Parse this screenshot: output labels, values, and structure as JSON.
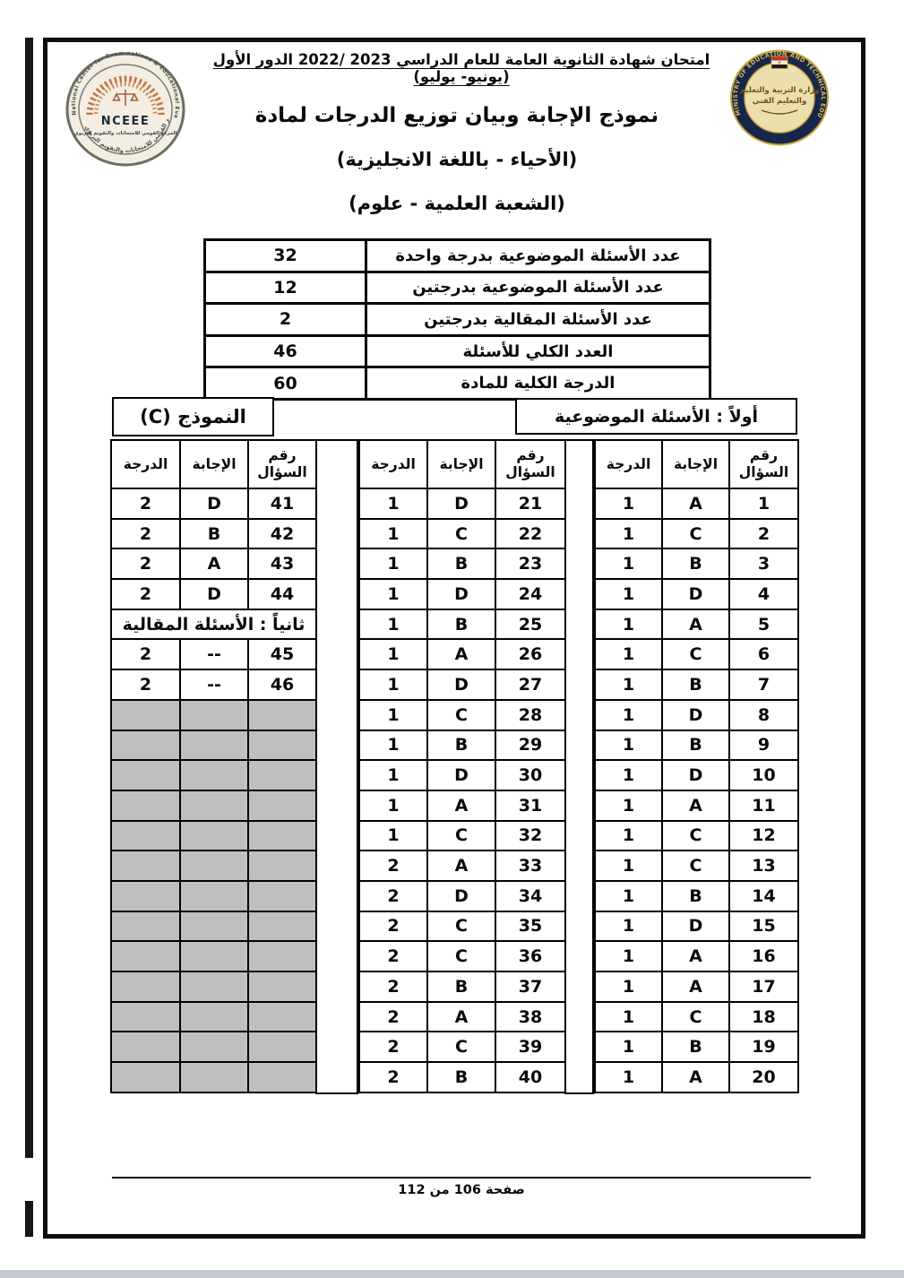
{
  "page": {
    "exam_header": "امتحان شهادة الثانوية العامة للعام الدراسي ‪2022/ 2023‬ الدور الأول (يونيو- يوليو)",
    "title_line1": "نموذج الإجابة وبيان توزيع الدرجات لمادة",
    "title_line2": "(الأحياء - باللغة الانجليزية)",
    "title_line3": "(الشعبة العلمية - علوم)",
    "footer_page": "صفحة 106 من 112"
  },
  "logos": {
    "nceee": {
      "acronym": "NCEEE",
      "ring_text_en": "National Center for Examinations & Educational Evaluation",
      "ring_text_ar": "المركز القومي للامتحانات والتقويم التربوي"
    },
    "ministry": {
      "ring_text": "MINISTRY OF EDUCATION AND TECHNICAL EDUCATION",
      "center_line1": "وزارة التربية والتعليم",
      "center_line2": "والتعليم الفني"
    }
  },
  "summary": {
    "rows": [
      {
        "label": "عدد الأسئلة الموضوعية بدرجة واحدة",
        "value": "32"
      },
      {
        "label": "عدد الأسئلة الموضوعية بدرجتين",
        "value": "12"
      },
      {
        "label": "عدد الأسئلة المقالية بدرجتين",
        "value": "2"
      },
      {
        "label": "العدد الكلي للأسئلة",
        "value": "46"
      },
      {
        "label": "الدرجة الكلية للمادة",
        "value": "60"
      }
    ]
  },
  "sections": {
    "objective_title": "أولاً : الأسئلة الموضوعية",
    "model_label": "النموذج (C)",
    "essay_title": "ثانياً : الأسئلة المقالية"
  },
  "answer_table": {
    "headers": {
      "q": "رقم السؤال",
      "a": "الإجابة",
      "g": "الدرجة"
    },
    "right": [
      {
        "q": "1",
        "a": "A",
        "g": "1"
      },
      {
        "q": "2",
        "a": "C",
        "g": "1"
      },
      {
        "q": "3",
        "a": "B",
        "g": "1"
      },
      {
        "q": "4",
        "a": "D",
        "g": "1"
      },
      {
        "q": "5",
        "a": "A",
        "g": "1"
      },
      {
        "q": "6",
        "a": "C",
        "g": "1"
      },
      {
        "q": "7",
        "a": "B",
        "g": "1"
      },
      {
        "q": "8",
        "a": "D",
        "g": "1"
      },
      {
        "q": "9",
        "a": "B",
        "g": "1"
      },
      {
        "q": "10",
        "a": "D",
        "g": "1"
      },
      {
        "q": "11",
        "a": "A",
        "g": "1"
      },
      {
        "q": "12",
        "a": "C",
        "g": "1"
      },
      {
        "q": "13",
        "a": "C",
        "g": "1"
      },
      {
        "q": "14",
        "a": "B",
        "g": "1"
      },
      {
        "q": "15",
        "a": "D",
        "g": "1"
      },
      {
        "q": "16",
        "a": "A",
        "g": "1"
      },
      {
        "q": "17",
        "a": "A",
        "g": "1"
      },
      {
        "q": "18",
        "a": "C",
        "g": "1"
      },
      {
        "q": "19",
        "a": "B",
        "g": "1"
      },
      {
        "q": "20",
        "a": "A",
        "g": "1"
      }
    ],
    "middle": [
      {
        "q": "21",
        "a": "D",
        "g": "1"
      },
      {
        "q": "22",
        "a": "C",
        "g": "1"
      },
      {
        "q": "23",
        "a": "B",
        "g": "1"
      },
      {
        "q": "24",
        "a": "D",
        "g": "1"
      },
      {
        "q": "25",
        "a": "B",
        "g": "1"
      },
      {
        "q": "26",
        "a": "A",
        "g": "1"
      },
      {
        "q": "27",
        "a": "D",
        "g": "1"
      },
      {
        "q": "28",
        "a": "C",
        "g": "1"
      },
      {
        "q": "29",
        "a": "B",
        "g": "1"
      },
      {
        "q": "30",
        "a": "D",
        "g": "1"
      },
      {
        "q": "31",
        "a": "A",
        "g": "1"
      },
      {
        "q": "32",
        "a": "C",
        "g": "1"
      },
      {
        "q": "33",
        "a": "A",
        "g": "2"
      },
      {
        "q": "34",
        "a": "D",
        "g": "2"
      },
      {
        "q": "35",
        "a": "C",
        "g": "2"
      },
      {
        "q": "36",
        "a": "C",
        "g": "2"
      },
      {
        "q": "37",
        "a": "B",
        "g": "2"
      },
      {
        "q": "38",
        "a": "A",
        "g": "2"
      },
      {
        "q": "39",
        "a": "C",
        "g": "2"
      },
      {
        "q": "40",
        "a": "B",
        "g": "2"
      }
    ],
    "left_top": [
      {
        "q": "41",
        "a": "D",
        "g": "2"
      },
      {
        "q": "42",
        "a": "B",
        "g": "2"
      },
      {
        "q": "43",
        "a": "A",
        "g": "2"
      },
      {
        "q": "44",
        "a": "D",
        "g": "2"
      }
    ],
    "left_bottom": [
      {
        "q": "45",
        "a": "--",
        "g": "2"
      },
      {
        "q": "46",
        "a": "--",
        "g": "2"
      }
    ],
    "left_empty_row_count": 13
  }
}
